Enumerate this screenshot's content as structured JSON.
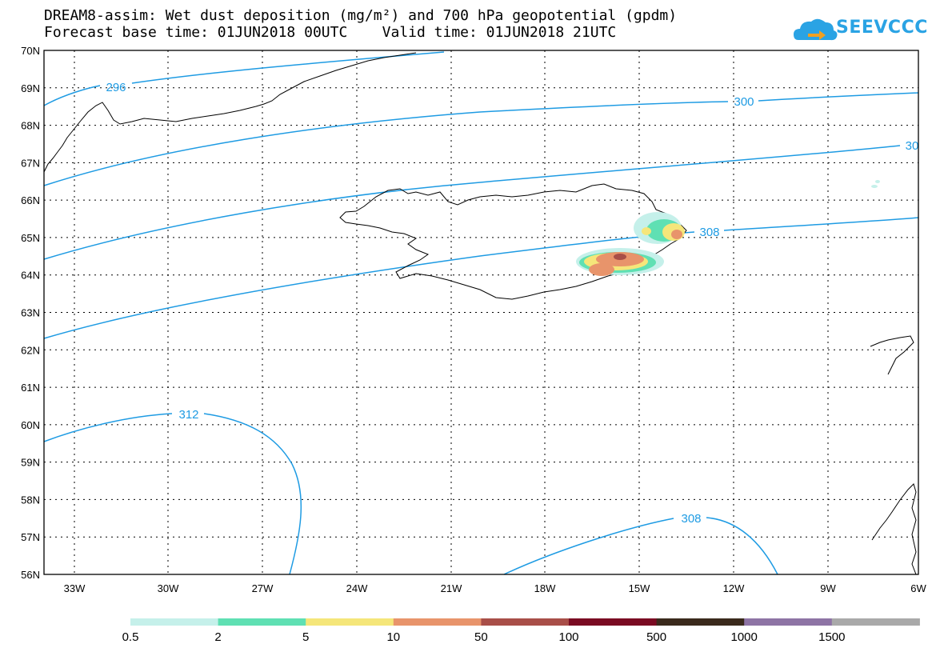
{
  "header": {
    "title_line1": "DREAM8-assim: Wet dust deposition (mg/m²) and 700 hPa geopotential (gpdm)",
    "title_line2": "Forecast base time: 01JUN2018 00UTC    Valid time: 01JUN2018 21UTC",
    "logo_text": "SEEVCCC",
    "logo_icon": "cloud-icon"
  },
  "map": {
    "lat_labels": [
      "70N",
      "69N",
      "68N",
      "67N",
      "66N",
      "65N",
      "64N",
      "63N",
      "62N",
      "61N",
      "60N",
      "59N",
      "58N",
      "57N",
      "56N"
    ],
    "lon_labels": [
      "33W",
      "30W",
      "27W",
      "24W",
      "21W",
      "18W",
      "15W",
      "12W",
      "9W",
      "6W"
    ],
    "contour_labels": [
      "296",
      "300",
      "30",
      "308",
      "312",
      "308"
    ],
    "contour_color": "#1e9be3",
    "coast_color": "#000000"
  },
  "legend": {
    "ticks": [
      "0.5",
      "2",
      "5",
      "10",
      "50",
      "100",
      "500",
      "1000",
      "1500"
    ],
    "colors": [
      "#c5f0ea",
      "#5fe0b3",
      "#f5e67a",
      "#e8946b",
      "#a84e48",
      "#7a0a22",
      "#3a2a1c",
      "#8e74a5",
      "#a9a9a9"
    ]
  }
}
